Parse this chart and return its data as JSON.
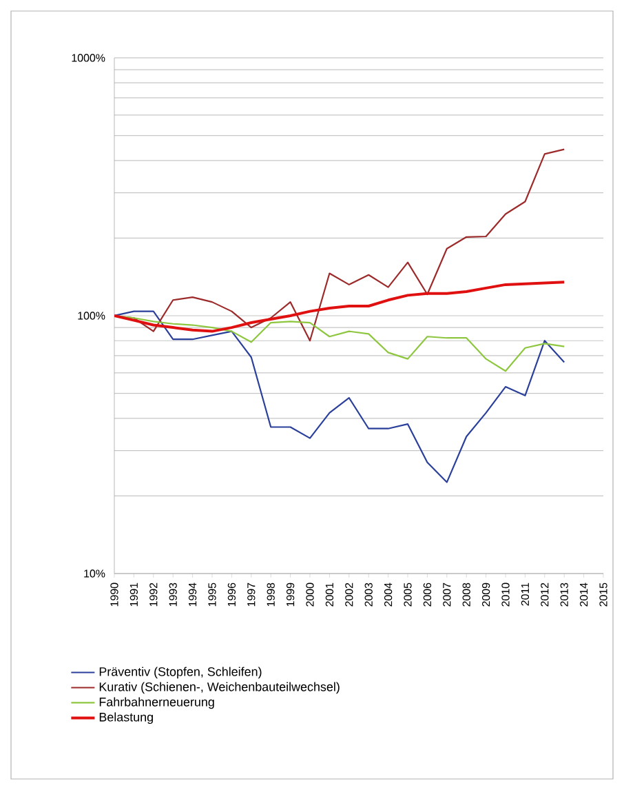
{
  "chart_data": {
    "type": "line",
    "log": "y",
    "grid": "y",
    "legend": "bottom",
    "marker": "none",
    "line_style": "solid",
    "x": [
      1990,
      1991,
      1992,
      1993,
      1994,
      1995,
      1996,
      1997,
      1998,
      1999,
      2000,
      2001,
      2002,
      2003,
      2004,
      2005,
      2006,
      2007,
      2008,
      2009,
      2010,
      2011,
      2012,
      2013
    ],
    "xlim": [
      1990,
      2015
    ],
    "xticks": [
      1990,
      1991,
      1992,
      1993,
      1994,
      1995,
      1996,
      1997,
      1998,
      1999,
      2000,
      2001,
      2002,
      2003,
      2004,
      2005,
      2006,
      2007,
      2008,
      2009,
      2010,
      2011,
      2012,
      2013,
      2014,
      2015
    ],
    "ylim": [
      10,
      1000
    ],
    "yticks": [
      {
        "value": 10,
        "label": "10%"
      },
      {
        "value": 20,
        "label": null
      },
      {
        "value": 30,
        "label": null
      },
      {
        "value": 40,
        "label": null
      },
      {
        "value": 50,
        "label": null
      },
      {
        "value": 60,
        "label": null
      },
      {
        "value": 70,
        "label": null
      },
      {
        "value": 80,
        "label": null
      },
      {
        "value": 90,
        "label": null
      },
      {
        "value": 100,
        "label": "100%"
      },
      {
        "value": 200,
        "label": null
      },
      {
        "value": 300,
        "label": null
      },
      {
        "value": 400,
        "label": null
      },
      {
        "value": 500,
        "label": null
      },
      {
        "value": 600,
        "label": null
      },
      {
        "value": 700,
        "label": null
      },
      {
        "value": 800,
        "label": null
      },
      {
        "value": 900,
        "label": null
      },
      {
        "value": 1000,
        "label": "1000%"
      }
    ],
    "series": [
      {
        "name": "Präventiv (Stopfen, Schleifen)",
        "color": "#2a3f9a",
        "values": [
          100,
          104,
          104,
          81,
          81,
          84,
          87,
          69,
          37,
          37,
          33.5,
          42,
          48,
          36.5,
          36.5,
          38,
          27,
          22.6,
          34,
          42,
          53,
          49,
          80,
          66
        ]
      },
      {
        "name": "Kurativ (Schienen-, Weichenbauteilwechsel)",
        "color": "#9c2a2a",
        "values": [
          100,
          98,
          87,
          115,
          118,
          113,
          104,
          90,
          98,
          113,
          80,
          146,
          132,
          144,
          129,
          161,
          121,
          182,
          202,
          203,
          248,
          277,
          424,
          442
        ]
      },
      {
        "name": "Fahrbahnerneuerung",
        "color": "#8ec63f",
        "values": [
          100,
          98,
          95,
          93,
          92,
          90,
          87,
          79,
          94,
          95,
          94,
          83,
          87,
          85,
          72,
          68,
          83,
          82,
          82,
          68,
          61,
          75,
          78,
          76
        ]
      },
      {
        "name": "Belastung",
        "color": "#e01010",
        "values": [
          100,
          96,
          92,
          90,
          88,
          87,
          90,
          94,
          97,
          100,
          104,
          107,
          109,
          109,
          115,
          120,
          122,
          122,
          124,
          128,
          132,
          133,
          134,
          135
        ]
      }
    ]
  }
}
